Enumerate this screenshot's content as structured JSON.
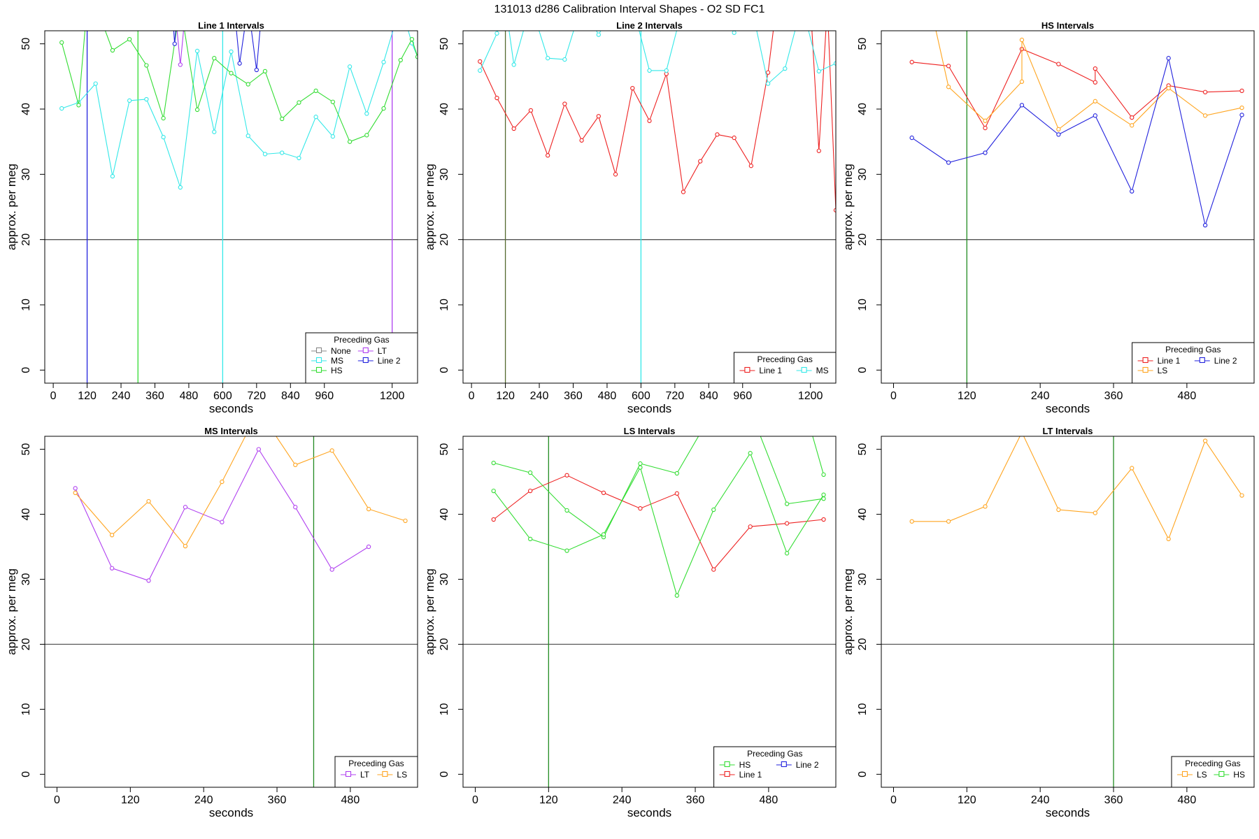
{
  "figure_title": "131013   d286   Calibration Interval Shapes - O2 SD FC1",
  "colors": {
    "None": "#888888",
    "MS": "#33e8e8",
    "HS": "#33dd33",
    "LT": "#b040f0",
    "Line 1": "#ee2222",
    "Line 2": "#2222dd",
    "LS": "#ffa520"
  },
  "chart_data": [
    {
      "type": "line",
      "title": "Line 1 Intervals",
      "xlabel": "seconds",
      "ylabel": "approx. per meg",
      "xlim": [
        -30,
        1290
      ],
      "ylim": [
        -2,
        52
      ],
      "xticks": [
        0,
        120,
        240,
        360,
        480,
        600,
        720,
        840,
        960,
        1200
      ],
      "yticks": [
        0,
        10,
        20,
        30,
        40,
        50
      ],
      "hline": 20,
      "vlines": [
        {
          "x": 120,
          "color": "#2222dd"
        },
        {
          "x": 300,
          "color": "#33dd33"
        },
        {
          "x": 600,
          "color": "#33e8e8"
        },
        {
          "x": 1200,
          "color": "#b040f0"
        }
      ],
      "legend": {
        "title": "Preceding Gas",
        "position": "bottom-right",
        "columns": 2,
        "entries": [
          "None",
          "MS",
          "HS",
          "LT",
          "Line 2"
        ]
      },
      "series": [
        {
          "name": "MS",
          "x": [
            30,
            90,
            150,
            210,
            270,
            330,
            390,
            450,
            510,
            570,
            630,
            690,
            750,
            810,
            870,
            930,
            990,
            1050,
            1110,
            1170,
            1230,
            1270,
            1290
          ],
          "y": [
            40.1,
            41.0,
            43.9,
            29.7,
            41.3,
            41.5,
            35.7,
            28.0,
            48.9,
            36.5,
            48.8,
            35.9,
            33.1,
            33.3,
            32.5,
            38.8,
            35.8,
            46.5,
            39.3,
            47.2,
            56.0,
            50.1,
            48.0
          ]
        },
        {
          "name": "HS",
          "x": [
            30,
            90,
            120,
            150,
            210,
            270,
            330,
            390,
            450,
            510,
            570,
            630,
            690,
            750,
            810,
            870,
            930,
            990,
            1050,
            1110,
            1170,
            1230,
            1270,
            1290
          ],
          "y": [
            50.2,
            40.6,
            56.0,
            56.0,
            49.0,
            50.7,
            46.7,
            38.6,
            56.0,
            39.9,
            47.8,
            45.5,
            43.8,
            45.8,
            38.5,
            41.0,
            42.8,
            41.1,
            35.0,
            36.0,
            40.1,
            47.5,
            50.7,
            48.0
          ]
        },
        {
          "name": "LT",
          "x": [
            430,
            450,
            470,
            500,
            520
          ],
          "y": [
            56.0,
            46.8,
            56.0,
            56.0,
            56.0
          ]
        },
        {
          "name": "Line 2",
          "x": [
            420,
            430,
            440,
            640,
            660,
            690,
            720,
            740
          ],
          "y": [
            56.0,
            50.0,
            56.0,
            56.0,
            47.0,
            56.0,
            46.0,
            56.0
          ]
        }
      ]
    },
    {
      "type": "line",
      "title": "Line 2 Intervals",
      "xlabel": "seconds",
      "ylabel": "approx. per meg",
      "xlim": [
        -30,
        1290
      ],
      "ylim": [
        -2,
        52
      ],
      "xticks": [
        0,
        120,
        240,
        360,
        480,
        600,
        720,
        840,
        960,
        1200
      ],
      "yticks": [
        0,
        10,
        20,
        30,
        40,
        50
      ],
      "hline": 20,
      "vlines": [
        {
          "x": 120,
          "color": "#556b2f"
        },
        {
          "x": 600,
          "color": "#33e8e8"
        }
      ],
      "legend": {
        "title": "Preceding Gas",
        "position": "bottom-right",
        "columns": 2,
        "entries": [
          "Line 1",
          "MS"
        ]
      },
      "series": [
        {
          "name": "Line 1",
          "x": [
            30,
            90,
            150,
            210,
            270,
            330,
            390,
            450,
            510,
            570,
            630,
            690,
            750,
            810,
            870,
            930,
            990,
            1050,
            1080,
            1110,
            1150,
            1170,
            1200,
            1230,
            1260,
            1290
          ],
          "y": [
            47.3,
            41.7,
            37.0,
            39.8,
            32.9,
            40.8,
            35.2,
            38.9,
            30.0,
            43.2,
            38.2,
            45.4,
            27.3,
            32.0,
            36.1,
            35.6,
            31.3,
            45.6,
            56.0,
            56.0,
            56.0,
            56.0,
            56.0,
            33.6,
            56.0,
            24.5
          ]
        },
        {
          "name": "MS",
          "x": [
            30,
            90,
            120,
            150,
            210,
            270,
            330,
            390,
            450,
            510,
            570,
            630,
            690,
            750,
            810,
            870,
            930,
            990,
            1050,
            1110,
            1170,
            1230,
            1290
          ],
          "y": [
            45.9,
            51.6,
            56.0,
            46.8,
            56.0,
            47.8,
            47.6,
            56.0,
            51.4,
            56.0,
            56.0,
            45.9,
            45.9,
            56.0,
            56.0,
            56.0,
            51.7,
            56.0,
            43.9,
            46.2,
            56.0,
            45.8,
            47.0
          ]
        }
      ]
    },
    {
      "type": "line",
      "title": "HS Intervals",
      "xlabel": "seconds",
      "ylabel": "approx. per meg",
      "xlim": [
        -20,
        590
      ],
      "ylim": [
        -2,
        52
      ],
      "xticks": [
        0,
        120,
        240,
        360,
        480
      ],
      "yticks": [
        0,
        10,
        20,
        30,
        40,
        50
      ],
      "hline": 20,
      "vlines": [
        {
          "x": 120,
          "color": "#228b22"
        }
      ],
      "legend": {
        "title": "Preceding Gas",
        "position": "bottom-right",
        "columns": 2,
        "entries": [
          "Line 1",
          "LS",
          "Line 2"
        ]
      },
      "series": [
        {
          "name": "Line 1",
          "x": [
            30,
            90,
            150,
            210,
            270,
            330,
            330,
            390,
            450,
            510,
            570
          ],
          "y": [
            47.2,
            46.6,
            37.1,
            49.2,
            46.9,
            44.1,
            46.2,
            38.7,
            43.6,
            42.6,
            42.8
          ]
        },
        {
          "name": "LS",
          "x": [
            60,
            90,
            150,
            210,
            210,
            270,
            330,
            390,
            450,
            510,
            570
          ],
          "y": [
            56.0,
            43.4,
            38.2,
            44.2,
            50.6,
            36.9,
            41.2,
            37.5,
            43.2,
            39.0,
            40.2
          ]
        },
        {
          "name": "Line 2",
          "x": [
            30,
            90,
            150,
            210,
            270,
            330,
            390,
            450,
            510,
            570
          ],
          "y": [
            35.6,
            31.8,
            33.3,
            40.6,
            36.1,
            39.0,
            27.4,
            47.8,
            22.2,
            39.1
          ]
        }
      ]
    },
    {
      "type": "line",
      "title": "MS Intervals",
      "xlabel": "seconds",
      "ylabel": "approx. per meg",
      "xlim": [
        -20,
        590
      ],
      "ylim": [
        -2,
        52
      ],
      "xticks": [
        0,
        120,
        240,
        360,
        480
      ],
      "yticks": [
        0,
        10,
        20,
        30,
        40,
        50
      ],
      "hline": 20,
      "vlines": [
        {
          "x": 420,
          "color": "#228b22"
        }
      ],
      "legend": {
        "title": "Preceding Gas",
        "position": "bottom-right",
        "columns": 2,
        "entries": [
          "LT",
          "LS"
        ]
      },
      "series": [
        {
          "name": "LT",
          "x": [
            30,
            90,
            150,
            210,
            270,
            330,
            390,
            450,
            510
          ],
          "y": [
            44.0,
            31.7,
            29.8,
            41.1,
            38.8,
            50.0,
            41.1,
            31.5,
            35.0
          ]
        },
        {
          "name": "LS",
          "x": [
            30,
            90,
            150,
            210,
            270,
            330,
            390,
            450,
            510,
            570
          ],
          "y": [
            43.3,
            36.8,
            42.0,
            35.1,
            45.0,
            56.0,
            47.6,
            49.8,
            40.8,
            39.0
          ]
        }
      ]
    },
    {
      "type": "line",
      "title": "LS Intervals",
      "xlabel": "seconds",
      "ylabel": "approx. per meg",
      "xlim": [
        -20,
        590
      ],
      "ylim": [
        -2,
        52
      ],
      "xticks": [
        0,
        120,
        240,
        360,
        480
      ],
      "yticks": [
        0,
        10,
        20,
        30,
        40,
        50
      ],
      "hline": 20,
      "vlines": [
        {
          "x": 120,
          "color": "#228b22"
        }
      ],
      "legend": {
        "title": "Preceding Gas",
        "position": "bottom-right",
        "columns": 2,
        "entries": [
          "HS",
          "Line 1",
          "Line 2"
        ]
      },
      "series": [
        {
          "name": "Line 1",
          "x": [
            30,
            90,
            150,
            210,
            270,
            330,
            390,
            450,
            510,
            570
          ],
          "y": [
            39.2,
            43.6,
            46.0,
            43.3,
            40.9,
            43.2,
            31.5,
            38.1,
            38.6,
            39.2
          ]
        },
        {
          "name": "HS",
          "x": [
            30,
            90,
            150,
            210,
            270,
            330,
            390,
            450,
            510,
            570
          ],
          "y": [
            47.9,
            46.4,
            40.6,
            36.5,
            47.8,
            46.3,
            56.0,
            56.0,
            41.6,
            42.4
          ]
        },
        {
          "name": "HS",
          "x": [
            30,
            90,
            150,
            210,
            270,
            330,
            390,
            450,
            510,
            570
          ],
          "y": [
            43.6,
            36.2,
            34.4,
            36.9,
            47.2,
            27.5,
            40.7,
            49.4,
            34.0,
            43.0
          ]
        },
        {
          "name": "HS",
          "x": [
            510,
            540,
            570
          ],
          "y": [
            56.0,
            56.0,
            46.1
          ]
        }
      ]
    },
    {
      "type": "line",
      "title": "LT Intervals",
      "xlabel": "seconds",
      "ylabel": "approx. per meg",
      "xlim": [
        -20,
        590
      ],
      "ylim": [
        -2,
        52
      ],
      "xticks": [
        0,
        120,
        240,
        360,
        480
      ],
      "yticks": [
        0,
        10,
        20,
        30,
        40,
        50
      ],
      "hline": 20,
      "vlines": [
        {
          "x": 360,
          "color": "#228b22"
        }
      ],
      "legend": {
        "title": "Preceding Gas",
        "position": "bottom-right",
        "columns": 2,
        "entries": [
          "LS",
          "HS"
        ]
      },
      "series": [
        {
          "name": "LS",
          "x": [
            30,
            90,
            150,
            210,
            270,
            330,
            390,
            450,
            510,
            570
          ],
          "y": [
            38.9,
            38.9,
            41.2,
            52.6,
            40.7,
            40.2,
            47.1,
            36.2,
            51.3,
            42.9
          ]
        }
      ]
    }
  ]
}
